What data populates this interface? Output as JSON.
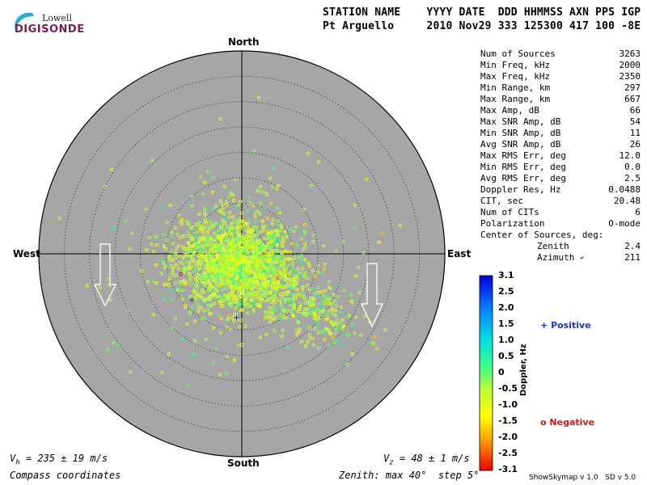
{
  "logo": {
    "line1": "Lowell",
    "line2": "DIGISONDE"
  },
  "header": {
    "row1": "STATION NAME    YYYY DATE  DDD HHMMSS AXN PPS IGP",
    "row2": "Pt Arguello     2010 Nov29 333 125300 417 100 -8E"
  },
  "compass": {
    "north": "North",
    "south": "South",
    "east": "East",
    "west": "West"
  },
  "stats": [
    {
      "label": "Num of Sources",
      "value": "3263"
    },
    {
      "label": "Min Freq, kHz",
      "value": "2000"
    },
    {
      "label": "Max Freq, kHz",
      "value": "2350"
    },
    {
      "label": "Min Range, km",
      "value": "297"
    },
    {
      "label": "Max Range, km",
      "value": "667"
    },
    {
      "label": "Max Amp, dB",
      "value": "66"
    },
    {
      "label": "Max SNR Amp, dB",
      "value": "54"
    },
    {
      "label": "Min SNR Amp, dB",
      "value": "11"
    },
    {
      "label": "Avg SNR Amp, dB",
      "value": "26"
    },
    {
      "label": "Max RMS Err, deg",
      "value": "12.0"
    },
    {
      "label": "Min RMS Err, deg",
      "value": "0.0"
    },
    {
      "label": "Avg RMS Err, deg",
      "value": "2.5"
    },
    {
      "label": "Doppler Res, Hz",
      "value": "0.0488"
    },
    {
      "label": "CIT, sec",
      "value": "20.48"
    },
    {
      "label": "Num of CITs",
      "value": "6"
    },
    {
      "label": "Polarization",
      "value": "O-mode"
    }
  ],
  "center_of_sources": {
    "label": "Center of Sources, deg:",
    "zenith_label": "Zenith",
    "zenith_value": "2.4",
    "azimuth_label": "Azimuth",
    "azimuth_value": "211"
  },
  "colorbar": {
    "label": "Doppler, Hz",
    "ticks": [
      "3.1",
      "2.5",
      "2.0",
      "1.5",
      "1.0",
      "0.5",
      "0",
      "-0.5",
      "-1.0",
      "-1.5",
      "-2.0",
      "-2.5",
      "-3.1"
    ],
    "min": -3.1,
    "max": 3.1
  },
  "legend": {
    "positive": "Positive",
    "negative": "Negative",
    "positive_color": "#1a33cc",
    "negative_color": "#cc1a1a"
  },
  "footer": {
    "vh_sym": "V",
    "vh_sub": "h",
    "vh_rest": " = 235 ± 19 m/s",
    "vz_sym": "V",
    "vz_sub": "z",
    "vz_rest": " = 48 ± 1 m/s",
    "coords": "Compass coordinates",
    "zenith": "Zenith: max 40°  step 5°",
    "credit": "ShowSkymap v 1.0   SD v 5.0"
  },
  "chart_data": {
    "type": "scatter",
    "coordinate_system": "polar-zenith-azimuth",
    "zenith_max_deg": 40,
    "zenith_step_deg": 5,
    "background": "#a6a6a6",
    "num_sources": 3263,
    "cluster": {
      "center_zenith_deg": 2.4,
      "center_azimuth_deg": 211,
      "sigma_east_deg": 5.5,
      "sigma_north_deg": 4.5,
      "tail_direction_azimuth_deg": 120,
      "doppler_mean_hz": -0.6,
      "doppler_sd_hz": 0.5
    },
    "arrows": [
      {
        "name": "horizontal-velocity",
        "azimuth_deg": 180
      },
      {
        "name": "vertical-velocity",
        "azimuth_deg": 180
      }
    ],
    "markers": [
      {
        "type": "positive",
        "east_deg": -10,
        "north_deg": -9
      },
      {
        "type": "positive",
        "east_deg": -1.2,
        "north_deg": -12.5
      },
      {
        "type": "negative",
        "east_deg": -12,
        "north_deg": -4
      }
    ]
  }
}
